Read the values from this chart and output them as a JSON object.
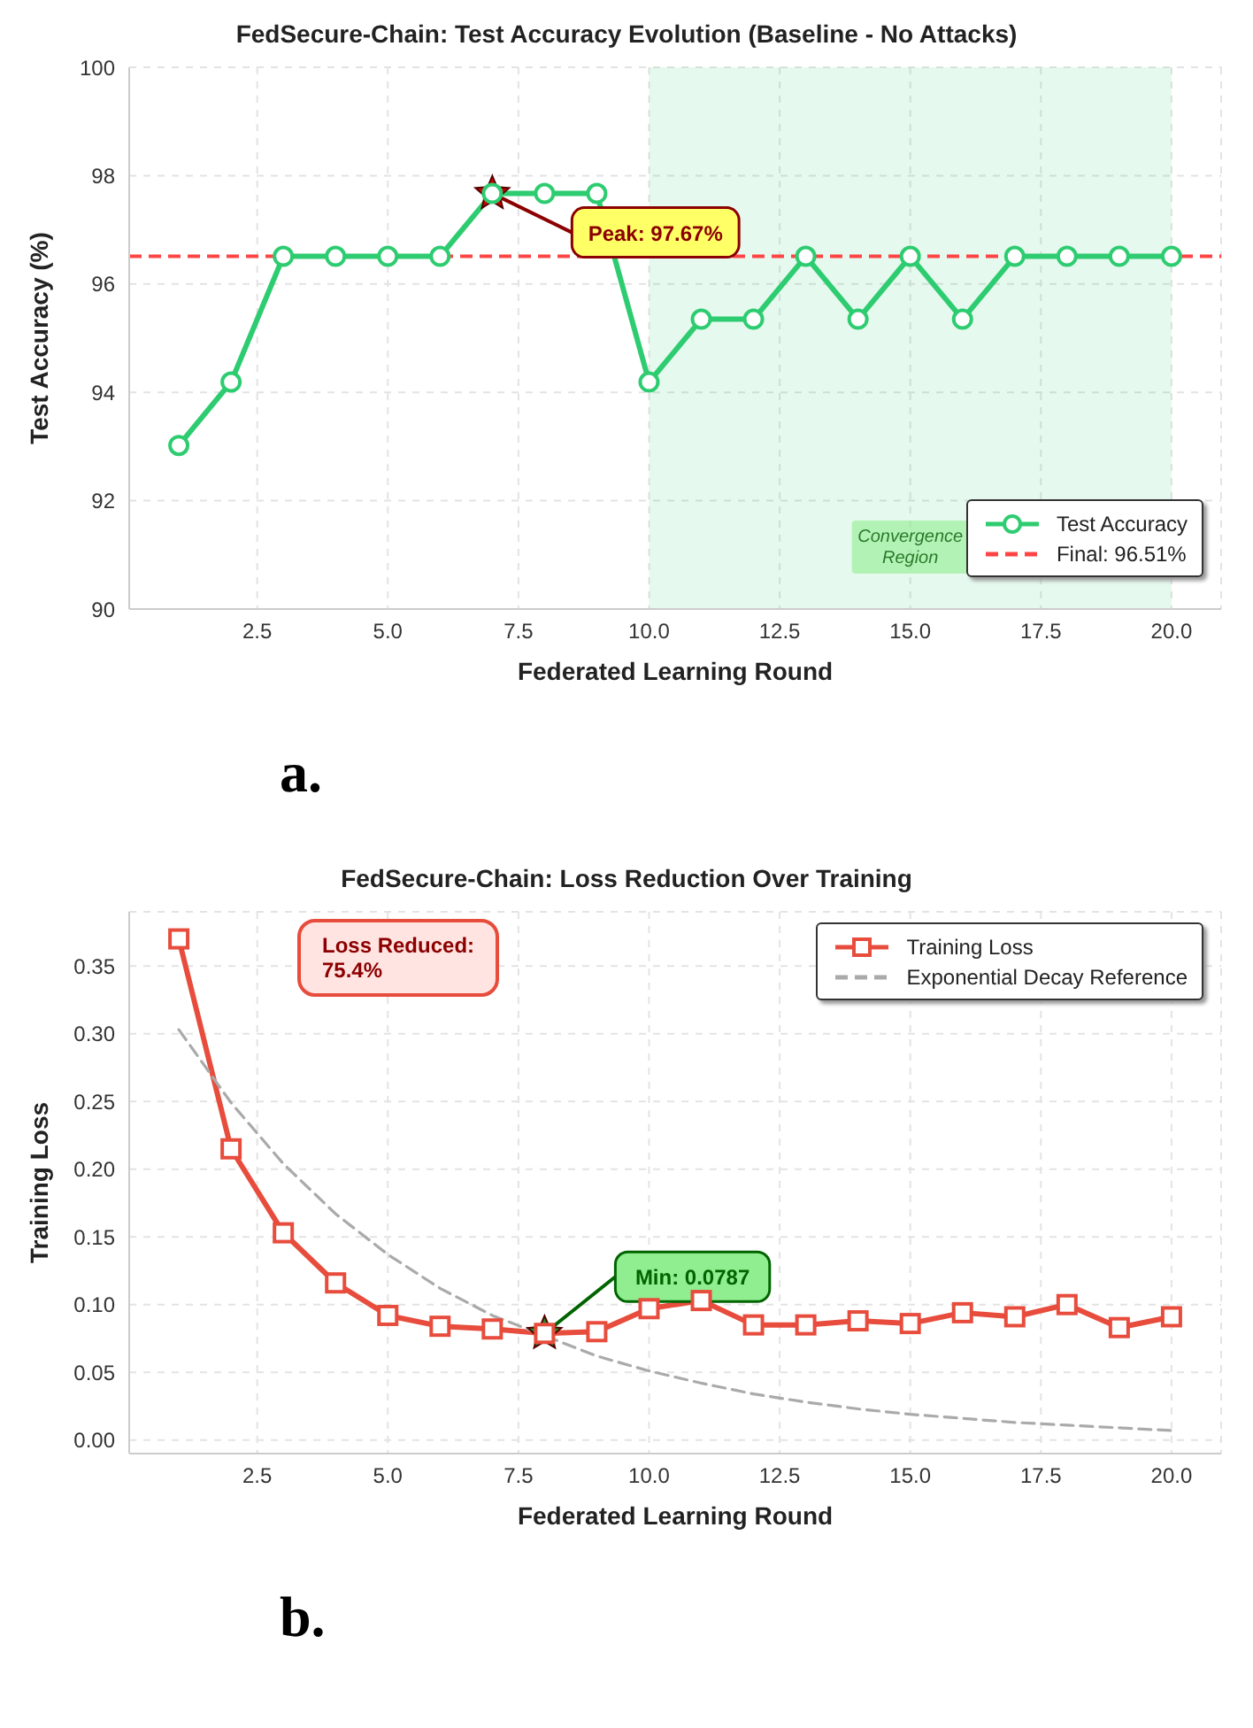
{
  "chart_data": [
    {
      "type": "line",
      "title": "FedSecure-Chain: Test Accuracy Evolution (Baseline - No Attacks)",
      "xlabel": "Federated Learning Round",
      "ylabel": "Test Accuracy (%)",
      "x": [
        1,
        2,
        3,
        4,
        5,
        6,
        7,
        8,
        9,
        10,
        11,
        12,
        13,
        14,
        15,
        16,
        17,
        18,
        19,
        20
      ],
      "series": [
        {
          "name": "Test Accuracy",
          "color": "#2ecc71",
          "marker": "circle",
          "line_style": "solid",
          "values": [
            93.02,
            94.19,
            96.51,
            96.51,
            96.51,
            96.51,
            97.67,
            97.67,
            97.67,
            94.19,
            95.35,
            95.35,
            96.51,
            95.35,
            96.51,
            95.35,
            96.51,
            96.51,
            96.51,
            96.51
          ]
        }
      ],
      "xlim": [
        0.05,
        20.95
      ],
      "xticks": [
        2.5,
        {
          "value": 5,
          "label": "5.0"
        },
        7.5,
        {
          "value": 10,
          "label": "10.0"
        },
        12.5,
        {
          "value": 15,
          "label": "15.0"
        },
        17.5,
        {
          "value": 20,
          "label": "20.0"
        }
      ],
      "ylim": [
        90,
        100
      ],
      "yticks": [
        90,
        92,
        94,
        96,
        98,
        100
      ],
      "ref_lines": [
        {
          "axis": "y",
          "value": 96.51,
          "label": "Final: 96.51%",
          "color": "#ff4444",
          "line_style": "dashed"
        }
      ],
      "bands": [
        {
          "axis": "x",
          "from": 10,
          "to": 20,
          "label": "Convergence Region",
          "color": "#2ecc71"
        }
      ],
      "annotations": [
        {
          "text": "Peak: 97.67%",
          "x": 7,
          "y": 97.67
        },
        "a."
      ],
      "grid": true,
      "legend": "bottom right"
    },
    {
      "type": "line",
      "title": "FedSecure-Chain: Loss Reduction Over Training",
      "xlabel": "Federated Learning Round",
      "ylabel": "Training Loss",
      "x": [
        1,
        2,
        3,
        4,
        5,
        6,
        7,
        8,
        9,
        10,
        11,
        12,
        13,
        14,
        15,
        16,
        17,
        18,
        19,
        20
      ],
      "series": [
        {
          "name": "Training Loss",
          "color": "#e74c3c",
          "marker": "square",
          "line_style": "solid",
          "values": [
            0.37,
            0.215,
            0.153,
            0.116,
            0.092,
            0.084,
            0.082,
            0.0787,
            0.08,
            0.097,
            0.103,
            0.085,
            0.085,
            0.088,
            0.086,
            0.094,
            0.091,
            0.1,
            0.083,
            0.091
          ]
        },
        {
          "name": "Exponential Decay Reference",
          "color": "#aaaaaa",
          "marker": "none",
          "line_style": "dashed",
          "values": [
            0.303,
            0.249,
            0.204,
            0.167,
            0.137,
            0.112,
            0.092,
            null,
            0.062,
            0.051,
            0.042,
            0.034,
            0.028,
            0.023,
            0.019,
            0.016,
            0.013,
            0.011,
            0.009,
            0.007
          ]
        }
      ],
      "xlim": [
        0.05,
        20.95
      ],
      "xticks": [
        2.5,
        {
          "value": 5,
          "label": "5.0"
        },
        7.5,
        {
          "value": 10,
          "label": "10.0"
        },
        12.5,
        {
          "value": 15,
          "label": "15.0"
        },
        17.5,
        {
          "value": 20,
          "label": "20.0"
        }
      ],
      "ylim": [
        -0.01,
        0.39
      ],
      "yticks": [
        {
          "value": 0,
          "label": "0.00"
        },
        0.05,
        {
          "value": 0.1,
          "label": "0.10"
        },
        0.15,
        {
          "value": 0.2,
          "label": "0.20"
        },
        0.25,
        {
          "value": 0.3,
          "label": "0.30"
        },
        0.35
      ],
      "annotations": [
        {
          "text": "Min: 0.0787",
          "x": 8,
          "y": 0.0787
        },
        "Loss Reduced:\n75.4%",
        "b."
      ],
      "grid": true,
      "legend": "top right"
    }
  ]
}
